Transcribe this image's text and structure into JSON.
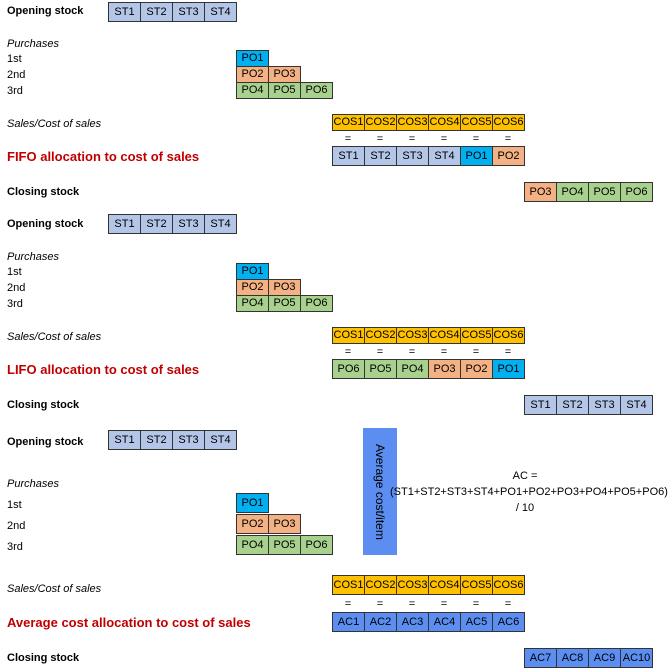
{
  "labels": {
    "opening_stock": "Opening stock",
    "purchases": "Purchases",
    "first": "1st",
    "second": "2nd",
    "third": "3rd",
    "sales_cos": "Sales/Cost of sales",
    "closing_stock": "Closing stock",
    "equals": "="
  },
  "fifo_title": "FIFO allocation to cost of sales",
  "lifo_title": "LIFO allocation to cost of sales",
  "avg_title": "Average cost allocation to cost of sales",
  "opening": [
    "ST1",
    "ST2",
    "ST3",
    "ST4"
  ],
  "purchase_1st": [
    "PO1"
  ],
  "purchase_2nd": [
    "PO2",
    "PO3"
  ],
  "purchase_3rd": [
    "PO4",
    "PO5",
    "PO6"
  ],
  "cos": [
    "COS1",
    "COS2",
    "COS3",
    "COS4",
    "COS5",
    "COS6"
  ],
  "fifo_alloc": [
    "ST1",
    "ST2",
    "ST3",
    "ST4",
    "PO1",
    "PO2"
  ],
  "fifo_closing": [
    "PO3",
    "PO4",
    "PO5",
    "PO6"
  ],
  "lifo_alloc": [
    "PO6",
    "PO5",
    "PO4",
    "PO3",
    "PO2",
    "PO1"
  ],
  "lifo_closing": [
    "ST1",
    "ST2",
    "ST3",
    "ST4"
  ],
  "avg_alloc": [
    "AC1",
    "AC2",
    "AC3",
    "AC4",
    "AC5",
    "AC6"
  ],
  "avg_closing": [
    "AC7",
    "AC8",
    "AC9",
    "AC10"
  ],
  "avg_bar": "Average cost/item",
  "formula": {
    "line1": "AC =",
    "line2": "(ST1+ST2+ST3+ST4+PO1+PO2+PO3+PO4+PO5+PO6)",
    "line3": "/ 10"
  },
  "colors": {
    "ST": "#b4c6e7",
    "PO1": "#00b0f0",
    "PO2_PO3": "#f4b183",
    "PO4_PO6": "#a9d18e",
    "COS": "#ffc000",
    "AC": "#5b8ef0",
    "title_red": "#c00000"
  }
}
